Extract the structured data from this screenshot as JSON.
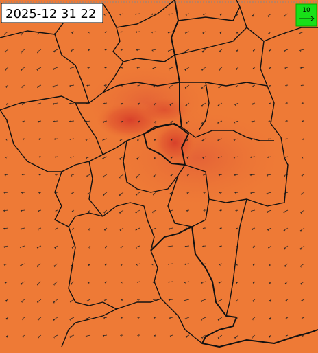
{
  "timestamp": "2025-12 31 22",
  "legend": {
    "label": "10"
  }
}
